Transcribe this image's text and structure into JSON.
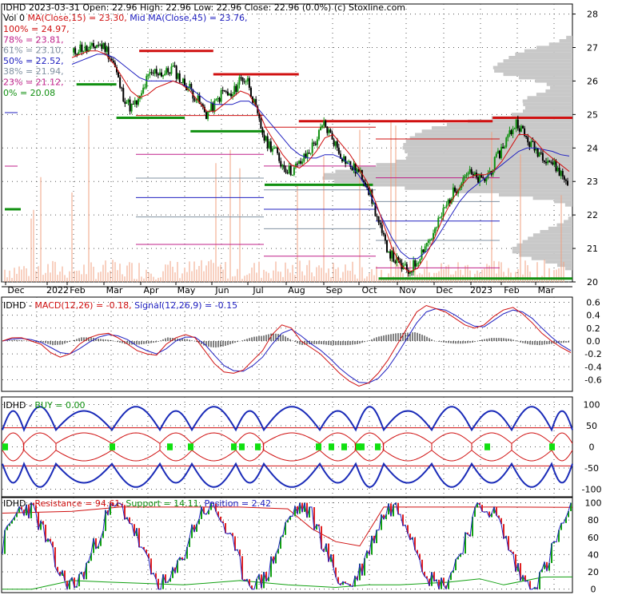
{
  "header": {
    "row1": [
      {
        "text": "IDHD  2023-03-31 Open: 22.96  High: 22.96  Low: 22.96  Close: 22.96 (0.0%)  (c) Stoxline.com",
        "color": "#000000"
      }
    ],
    "row2": [
      {
        "text": "Vol 0  ",
        "color": "#000000"
      },
      {
        "text": "MA(Close,15) = 23.30, ",
        "color": "#d01010"
      },
      {
        "text": "Mid MA(Close,45) = 23.76,",
        "color": "#2020c0"
      }
    ]
  },
  "fib_levels": [
    {
      "label": "100% = 24.97,",
      "color": "#d01010"
    },
    {
      "label": "78% = 23.81,",
      "color": "#c0208a"
    },
    {
      "label": "61% = 23.10,",
      "color": "#8090a0"
    },
    {
      "label": "50% = 22.52,",
      "color": "#2020c0"
    },
    {
      "label": "38% = 21.94,",
      "color": "#8090a0"
    },
    {
      "label": "23% = 21.12,",
      "color": "#c0208a"
    },
    {
      "label": "0% = 20.08",
      "color": "#109010"
    }
  ],
  "x_labels": [
    "Dec",
    "2022",
    "Feb",
    "Mar",
    "Apr",
    "May",
    "Jun",
    "Jul",
    "Aug",
    "Sep",
    "Oct",
    "Nov",
    "Dec",
    "2023",
    "Feb",
    "Mar"
  ],
  "colors": {
    "up": "#109010",
    "down": "#000000",
    "ma_fast": "#d01010",
    "ma_slow": "#2020c0",
    "volume_profile": "#c8c8c8",
    "volume_bars": "#f0a080",
    "support": "#109010",
    "resistance": "#d01010",
    "grid": "#555555"
  },
  "chart_data": [
    {
      "type": "candlestick",
      "title": "IDHD",
      "y_ticks": [
        20,
        21,
        22,
        23,
        24,
        25,
        26,
        27,
        28
      ],
      "ylim": [
        20,
        28.3
      ],
      "close_series": [
        26.8,
        27.0,
        26.9,
        27.1,
        27.0,
        26.5,
        25.6,
        25.2,
        25.4,
        26.1,
        26.3,
        26.2,
        26.4,
        26.0,
        25.8,
        25.4,
        25.0,
        25.3,
        25.7,
        25.5,
        26.1,
        26.0,
        25.0,
        24.2,
        24.0,
        23.5,
        23.3,
        23.5,
        23.8,
        24.2,
        24.7,
        24.3,
        23.8,
        23.5,
        23.3,
        23.0,
        22.2,
        21.3,
        20.8,
        20.5,
        20.3,
        20.6,
        21.1,
        21.4,
        22.0,
        22.5,
        22.9,
        23.3,
        23.1,
        23.0,
        23.4,
        23.9,
        24.4,
        24.8,
        24.3,
        24.0,
        23.8,
        23.6,
        23.3,
        22.96
      ],
      "ma15": [
        26.7,
        26.8,
        26.9,
        26.9,
        26.8,
        26.5,
        26.1,
        25.7,
        25.5,
        25.6,
        25.8,
        25.9,
        26.0,
        25.9,
        25.7,
        25.4,
        25.1,
        25.1,
        25.3,
        25.5,
        25.7,
        25.6,
        25.2,
        24.6,
        24.2,
        23.8,
        23.5,
        23.4,
        23.6,
        23.9,
        24.3,
        24.4,
        24.1,
        23.8,
        23.4,
        23.0,
        22.4,
        21.7,
        21.0,
        20.5,
        20.3,
        20.4,
        20.8,
        21.3,
        21.9,
        22.4,
        22.8,
        23.1,
        23.2,
        23.2,
        23.3,
        23.6,
        24.0,
        24.4,
        24.4,
        24.2,
        23.9,
        23.7,
        23.5,
        23.3
      ],
      "ma45": [
        26.5,
        26.6,
        26.7,
        26.8,
        26.8,
        26.7,
        26.5,
        26.3,
        26.1,
        26.0,
        26.0,
        26.0,
        26.0,
        25.9,
        25.8,
        25.6,
        25.4,
        25.3,
        25.3,
        25.3,
        25.4,
        25.4,
        25.2,
        24.9,
        24.6,
        24.3,
        24.0,
        23.8,
        23.7,
        23.7,
        23.8,
        23.8,
        23.7,
        23.5,
        23.2,
        22.8,
        22.3,
        21.8,
        21.3,
        20.9,
        20.7,
        20.7,
        20.9,
        21.2,
        21.6,
        22.0,
        22.4,
        22.7,
        22.9,
        23.1,
        23.3,
        23.5,
        23.7,
        23.9,
        24.0,
        24.0,
        23.95,
        23.9,
        23.8,
        23.76
      ],
      "support_levels": [
        {
          "y": 25.9,
          "from": 0.13,
          "to": 0.2
        },
        {
          "y": 24.9,
          "from": 0.2,
          "to": 0.32
        },
        {
          "y": 24.5,
          "from": 0.33,
          "to": 0.46
        },
        {
          "y": 22.9,
          "from": 0.46,
          "to": 0.58
        },
        {
          "y": 22.9,
          "from": 0.58,
          "to": 0.65
        },
        {
          "y": 20.1,
          "from": 0.66,
          "to": 1.0
        }
      ],
      "resistance_levels": [
        {
          "y": 26.9,
          "from": 0.24,
          "to": 0.37
        },
        {
          "y": 26.2,
          "from": 0.37,
          "to": 0.52
        },
        {
          "y": 24.8,
          "from": 0.52,
          "to": 0.86
        },
        {
          "y": 24.9,
          "from": 0.86,
          "to": 1.0
        }
      ]
    },
    {
      "type": "line",
      "title": "MACD(12,26) = -0.18, Signal(12,26,9) = -0.15",
      "y_ticks": [
        0.6,
        0.4,
        0.2,
        0.0,
        -0.2,
        -0.4,
        -0.6
      ],
      "ylim": [
        -0.78,
        0.68
      ],
      "series": [
        {
          "name": "MACD(12,26)",
          "values": [
            0.0,
            0.05,
            0.05,
            0.0,
            -0.05,
            -0.18,
            -0.25,
            -0.2,
            -0.05,
            0.05,
            0.1,
            0.12,
            0.05,
            -0.05,
            -0.15,
            -0.2,
            -0.22,
            -0.05,
            0.05,
            0.1,
            0.05,
            -0.15,
            -0.35,
            -0.48,
            -0.5,
            -0.45,
            -0.3,
            -0.15,
            0.1,
            0.25,
            0.2,
            0.0,
            -0.1,
            -0.2,
            -0.35,
            -0.5,
            -0.62,
            -0.7,
            -0.65,
            -0.5,
            -0.3,
            -0.05,
            0.2,
            0.45,
            0.55,
            0.5,
            0.45,
            0.35,
            0.25,
            0.2,
            0.25,
            0.38,
            0.48,
            0.52,
            0.42,
            0.28,
            0.12,
            0.0,
            -0.1,
            -0.18
          ]
        },
        {
          "name": "Signal(12,26,9)",
          "values": [
            0.0,
            0.03,
            0.04,
            0.02,
            -0.02,
            -0.1,
            -0.18,
            -0.2,
            -0.12,
            -0.02,
            0.06,
            0.1,
            0.08,
            0.02,
            -0.08,
            -0.15,
            -0.2,
            -0.12,
            0.0,
            0.06,
            0.06,
            -0.05,
            -0.22,
            -0.38,
            -0.46,
            -0.47,
            -0.38,
            -0.25,
            -0.05,
            0.12,
            0.18,
            0.08,
            -0.04,
            -0.14,
            -0.27,
            -0.42,
            -0.54,
            -0.64,
            -0.65,
            -0.58,
            -0.42,
            -0.2,
            0.04,
            0.28,
            0.45,
            0.5,
            0.48,
            0.4,
            0.3,
            0.23,
            0.22,
            0.32,
            0.42,
            0.48,
            0.45,
            0.35,
            0.2,
            0.06,
            -0.06,
            -0.15
          ]
        }
      ]
    },
    {
      "type": "line",
      "title": "BUY = 0.00",
      "y_ticks": [
        100,
        50,
        0,
        -50,
        -100
      ],
      "ylim": [
        -118,
        118
      ],
      "buy_value": 0.0
    },
    {
      "type": "line",
      "title": "Resistance = 94.61, Support = 14.11, Position = 2.42",
      "y_ticks": [
        100,
        80,
        60,
        40,
        20,
        0
      ],
      "ylim": [
        -4,
        106
      ],
      "series": [
        {
          "name": "Resistance",
          "last": 94.61
        },
        {
          "name": "Support",
          "last": 14.11
        },
        {
          "name": "Position",
          "last": 2.42
        }
      ]
    }
  ],
  "panel_titles": {
    "macd": [
      {
        "text": "IDHD - ",
        "color": "#000000"
      },
      {
        "text": "MACD(12,26) = -0.18, ",
        "color": "#d01010"
      },
      {
        "text": "Signal(12,26,9) = -0.15",
        "color": "#2020c0"
      }
    ],
    "buy": [
      {
        "text": "IDHD - ",
        "color": "#000000"
      },
      {
        "text": "BUY = 0.00",
        "color": "#109010"
      }
    ],
    "resist": [
      {
        "text": "IDHD - ",
        "color": "#000000"
      },
      {
        "text": "Resistance = 94.61, ",
        "color": "#d01010"
      },
      {
        "text": "Support = 14.11, ",
        "color": "#109010"
      },
      {
        "text": "Position = 2.42",
        "color": "#2020c0"
      }
    ]
  }
}
